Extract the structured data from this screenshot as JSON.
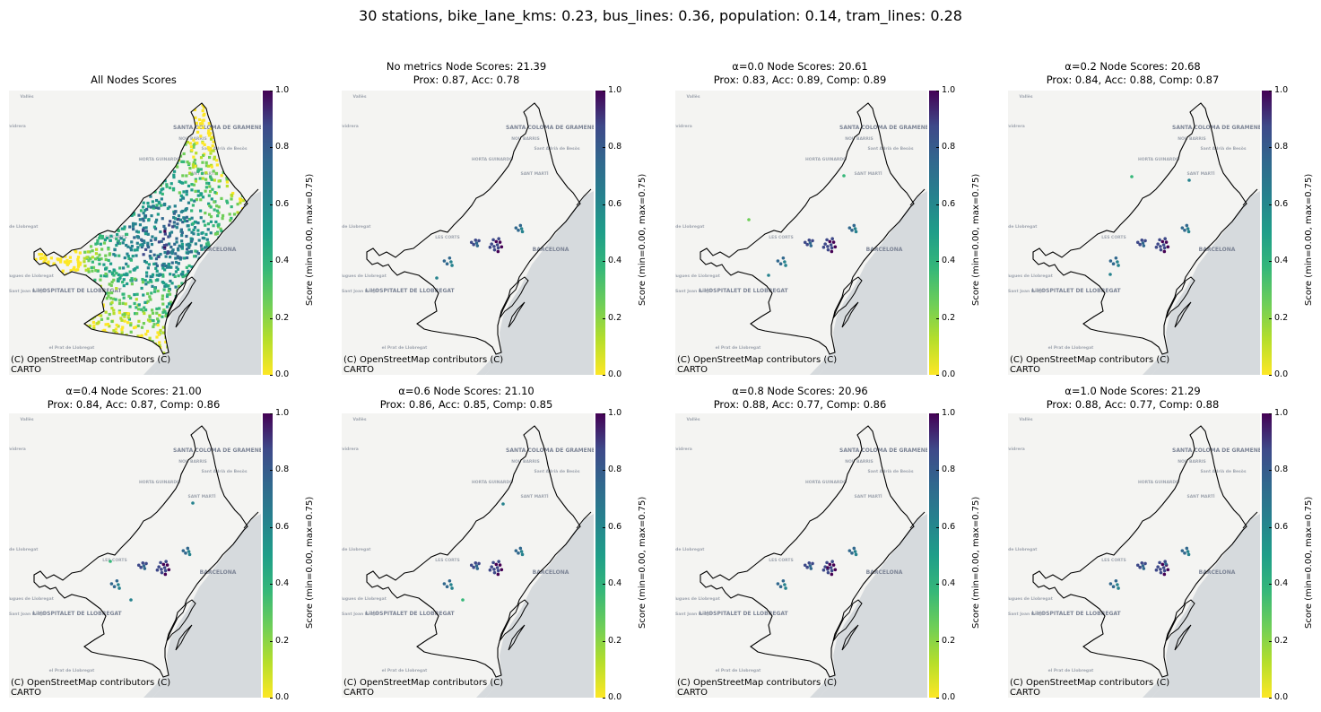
{
  "suptitle": "30 stations, bike_lane_kms: 0.23, bus_lines: 0.36, population: 0.14, tram_lines: 0.28",
  "colorbar": {
    "label": "Score (min=0.00, max=0.75)",
    "ticks": [
      "1.0",
      "0.8",
      "0.6",
      "0.4",
      "0.2",
      "0.0"
    ],
    "colormap": "viridis_r"
  },
  "attribution": {
    "line1": "(C) OpenStreetMap contributors (C)",
    "line2": "CARTO"
  },
  "basemap_labels": [
    "SANTA COLOMA DE GRAMENET",
    "BARCELONA",
    "L'HOSPITALET DE LLOBREGAT",
    "Esplugues de Llobregat",
    "Sant Joan Despí",
    "el Prat de Llobregat",
    "Sant Adrià de Besòs",
    "NOU BARRIS",
    "HORTA GUINARDÓ",
    "SANT MARTÍ",
    "LES CORTS",
    "Vallès",
    "Vallvidrera",
    "Cornellà de Llobregat"
  ],
  "panels": [
    {
      "title1": "All Nodes Scores",
      "title2": ""
    },
    {
      "title1": "No metrics Node Scores: 21.39",
      "title2": "Prox: 0.87, Acc: 0.78"
    },
    {
      "title1": "α=0.0 Node Scores: 20.61",
      "title2": "Prox: 0.83, Acc: 0.89, Comp: 0.89"
    },
    {
      "title1": "α=0.2 Node Scores: 20.68",
      "title2": "Prox: 0.84, Acc: 0.88, Comp: 0.87"
    },
    {
      "title1": "α=0.4 Node Scores: 21.00",
      "title2": "Prox: 0.84, Acc: 0.87, Comp: 0.86"
    },
    {
      "title1": "α=0.6 Node Scores: 21.10",
      "title2": "Prox: 0.86, Acc: 0.85, Comp: 0.85"
    },
    {
      "title1": "α=0.8 Node Scores: 20.96",
      "title2": "Prox: 0.88, Acc: 0.77, Comp: 0.86"
    },
    {
      "title1": "α=1.0 Node Scores: 21.29",
      "title2": "Prox: 0.88, Acc: 0.77, Comp: 0.88"
    }
  ]
}
